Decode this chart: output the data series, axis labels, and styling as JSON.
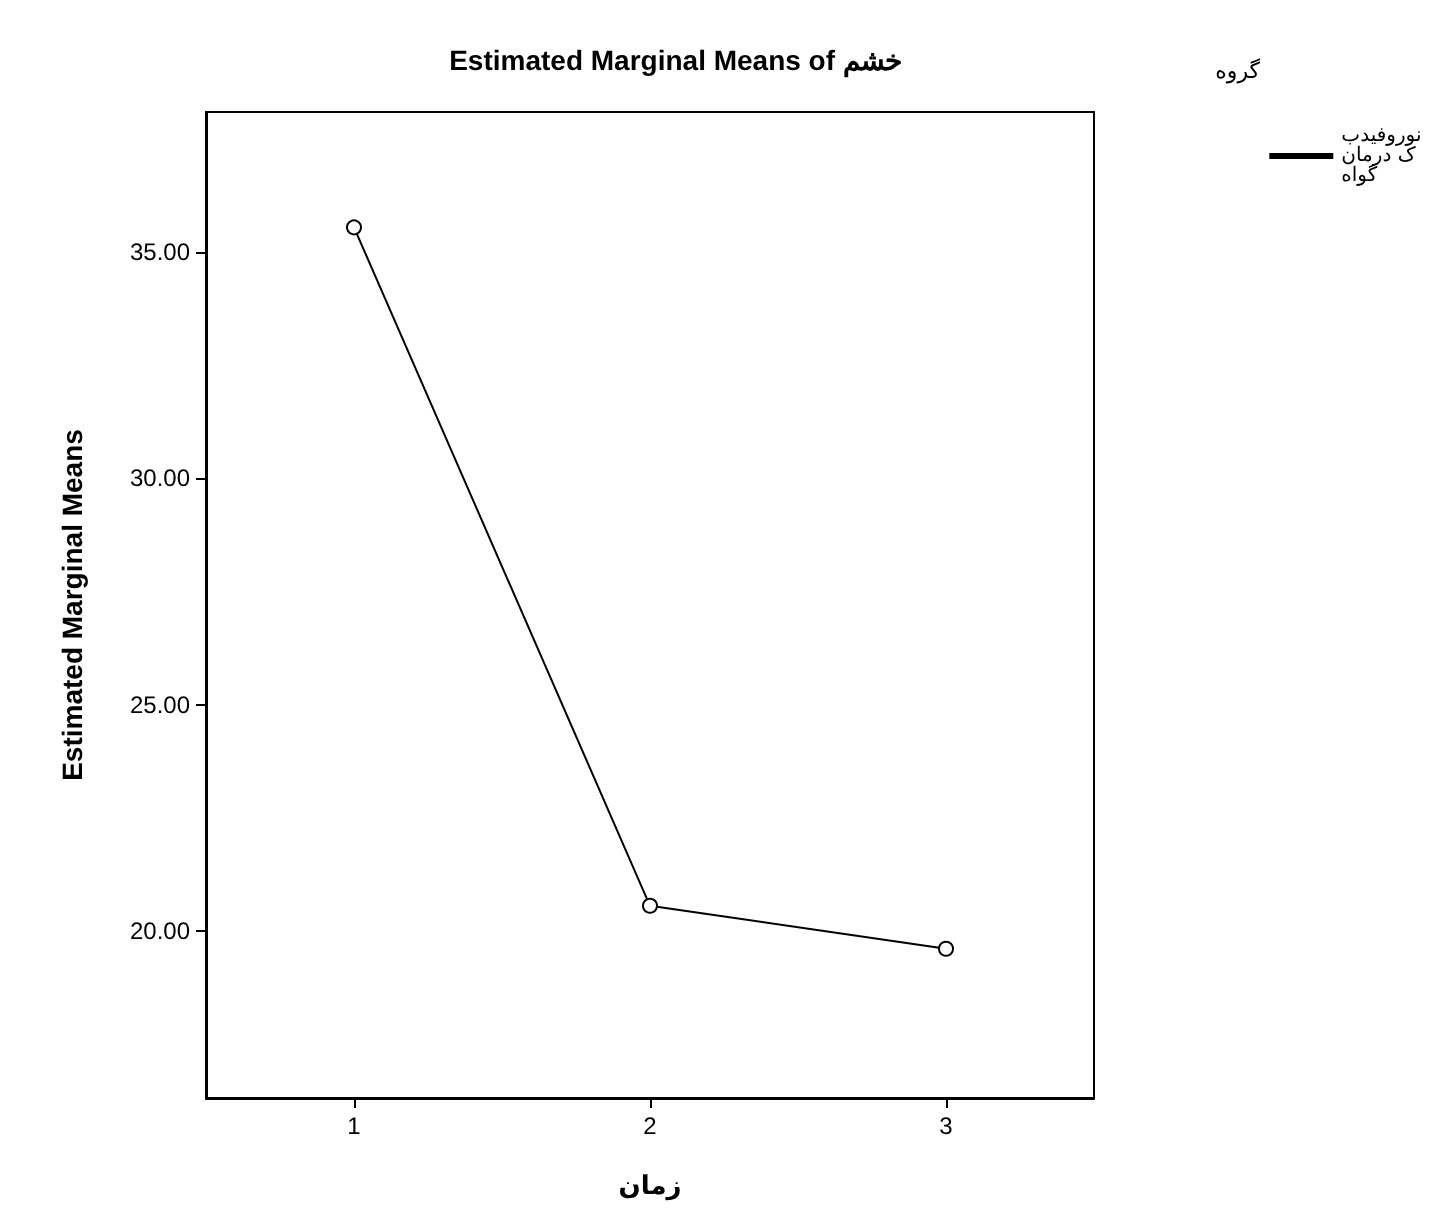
{
  "chart_data": {
    "type": "line",
    "title": "Estimated Marginal Means of خشم",
    "xlabel": "زمان",
    "ylabel": "Estimated Marginal Means",
    "legend_title": "گروه",
    "categories": [
      "1",
      "2",
      "3"
    ],
    "series": [
      {
        "name": "نوروفیدبک درمان گواه",
        "color": "#000000",
        "values": [
          35.55,
          20.55,
          19.6
        ]
      }
    ],
    "ylim": [
      16.3,
      38.1
    ],
    "yticks": [
      {
        "value": 20,
        "label": "20.00"
      },
      {
        "value": 25,
        "label": "25.00"
      },
      {
        "value": 30,
        "label": "30.00"
      },
      {
        "value": 35,
        "label": "35.00"
      }
    ],
    "grid": false,
    "legend": "top right",
    "marker": "circle",
    "line_style": "solid"
  }
}
